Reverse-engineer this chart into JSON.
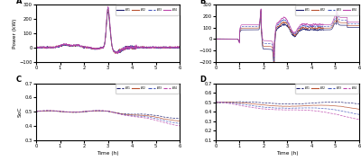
{
  "colors_A": [
    "#1a1a6e",
    "#b85030",
    "#4455bb",
    "#bb44aa"
  ],
  "colors_B": [
    "#1a1a6e",
    "#b85030",
    "#4455bb",
    "#bb44aa"
  ],
  "colors_C": [
    "#1a1a6e",
    "#b85030",
    "#4455bb",
    "#bb44aa"
  ],
  "colors_D": [
    "#1a1a6e",
    "#b85030",
    "#4455bb",
    "#bb44aa"
  ],
  "ls_A": [
    "-",
    "-",
    "--",
    "-"
  ],
  "ls_B": [
    "-",
    "-",
    "--",
    "-"
  ],
  "ls_C": [
    "--",
    "-",
    "--",
    "--"
  ],
  "ls_D": [
    "--",
    "-",
    "--",
    "--"
  ],
  "legend_labels": [
    "$B_1$",
    "$B_2$",
    "$B_3$",
    "$B_4$"
  ],
  "panel_labels": [
    "A",
    "B",
    "C",
    "D"
  ],
  "A_ylabel": "Power (kW)",
  "C_ylabel": "SoC",
  "xlabel": "Time (h)",
  "A_ylim": [
    -100,
    300
  ],
  "B_ylim": [
    -200,
    300
  ],
  "C_ylim": [
    0.3,
    0.7
  ],
  "D_ylim": [
    0.1,
    0.7
  ],
  "xlim": [
    0,
    6
  ],
  "xticks": [
    0,
    1,
    2,
    3,
    4,
    5,
    6
  ],
  "A_yticks": [
    -100,
    0,
    100,
    200,
    300
  ],
  "B_yticks": [
    -200,
    -100,
    0,
    100,
    200,
    300
  ],
  "C_yticks": [
    0.3,
    0.4,
    0.5,
    0.6,
    0.7
  ],
  "D_yticks": [
    0.1,
    0.2,
    0.3,
    0.4,
    0.5,
    0.6,
    0.7
  ],
  "background": "#ffffff"
}
